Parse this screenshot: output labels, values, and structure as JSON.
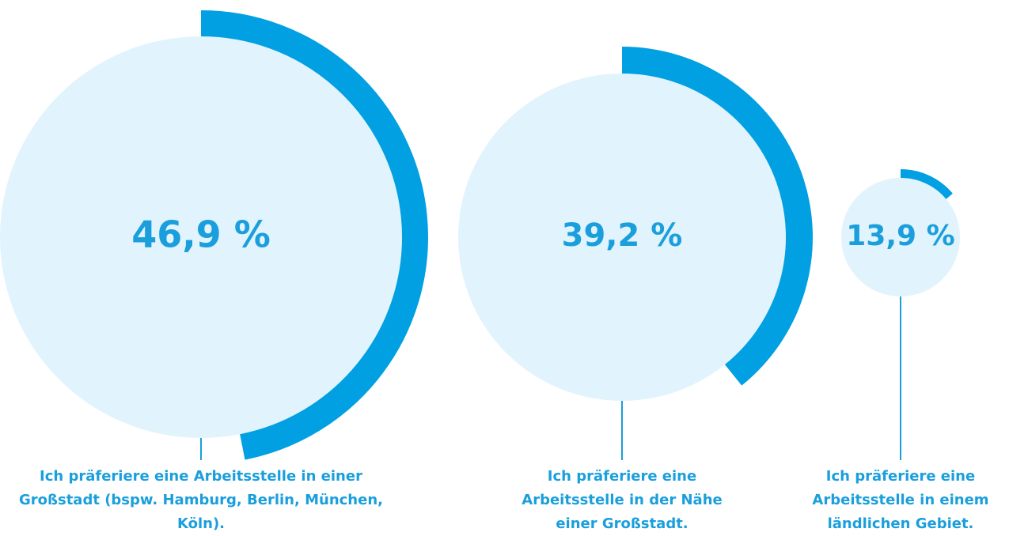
{
  "chart_data": {
    "type": "radial-progress",
    "categories": [
      "Ich präferiere eine Arbeitsstelle in einer Großstadt (bspw. Hamburg, Berlin, München, Köln).",
      "Ich präferiere eine Arbeitsstelle in der Nähe einer Großstadt.",
      "Ich präferiere eine Arbeitsstelle in einem ländlichen Gebiet."
    ],
    "values": [
      46.9,
      39.2,
      13.9
    ],
    "value_labels": [
      "46,9 %",
      "39,2 %",
      "13,9 %"
    ],
    "color": "#00a0e3",
    "track_color": "#e1f3fc",
    "text_color": "#1a9fdc"
  }
}
